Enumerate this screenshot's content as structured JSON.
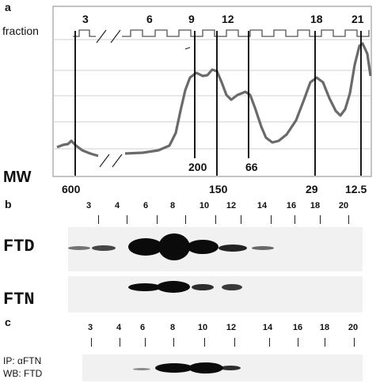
{
  "panel_a": {
    "letter": "a",
    "fraction_label": "fraction",
    "fraction_numbers": [
      "3",
      "6",
      "9",
      "12",
      "18",
      "21"
    ],
    "mw_label": "MW",
    "mw_values_lower": [
      "600",
      "150",
      "29",
      "12.5"
    ],
    "mw_values_upper": [
      "200",
      "66"
    ]
  },
  "panel_b": {
    "letter": "b",
    "lane_numbers": [
      "3",
      "4",
      "6",
      "8",
      "10",
      "12",
      "14",
      "16",
      "18",
      "20"
    ],
    "blot_top_label": "FTD",
    "blot_bottom_label": "FTN"
  },
  "panel_c": {
    "letter": "c",
    "lane_numbers": [
      "3",
      "4",
      "6",
      "8",
      "10",
      "12",
      "14",
      "16",
      "18",
      "20"
    ],
    "ip_label": "IP: αFTN",
    "wb_label": "WB: FTD"
  }
}
